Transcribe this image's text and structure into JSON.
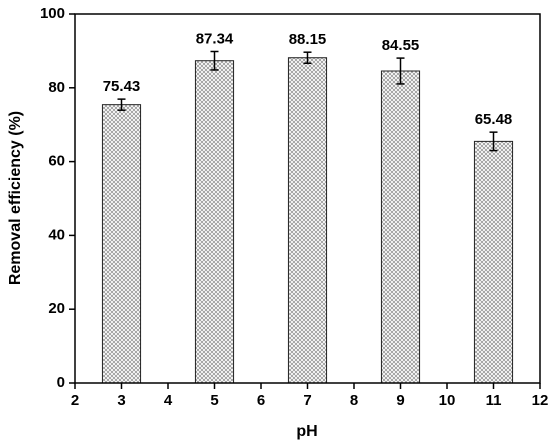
{
  "chart_data": {
    "type": "bar",
    "x": [
      3,
      5,
      7,
      9,
      11
    ],
    "values": [
      75.43,
      87.34,
      88.15,
      84.55,
      65.48
    ],
    "errors": [
      1.5,
      2.5,
      1.5,
      3.5,
      2.5
    ],
    "color": "#9a9a9a",
    "xlabel": "pH",
    "ylabel": "Removal efficiency (%)",
    "xlim": [
      2,
      12
    ],
    "xticks": [
      2,
      3,
      4,
      5,
      6,
      7,
      8,
      9,
      10,
      11,
      12
    ],
    "ylim": [
      0,
      100
    ],
    "yticks": [
      0,
      20,
      40,
      60,
      80,
      100
    ]
  }
}
